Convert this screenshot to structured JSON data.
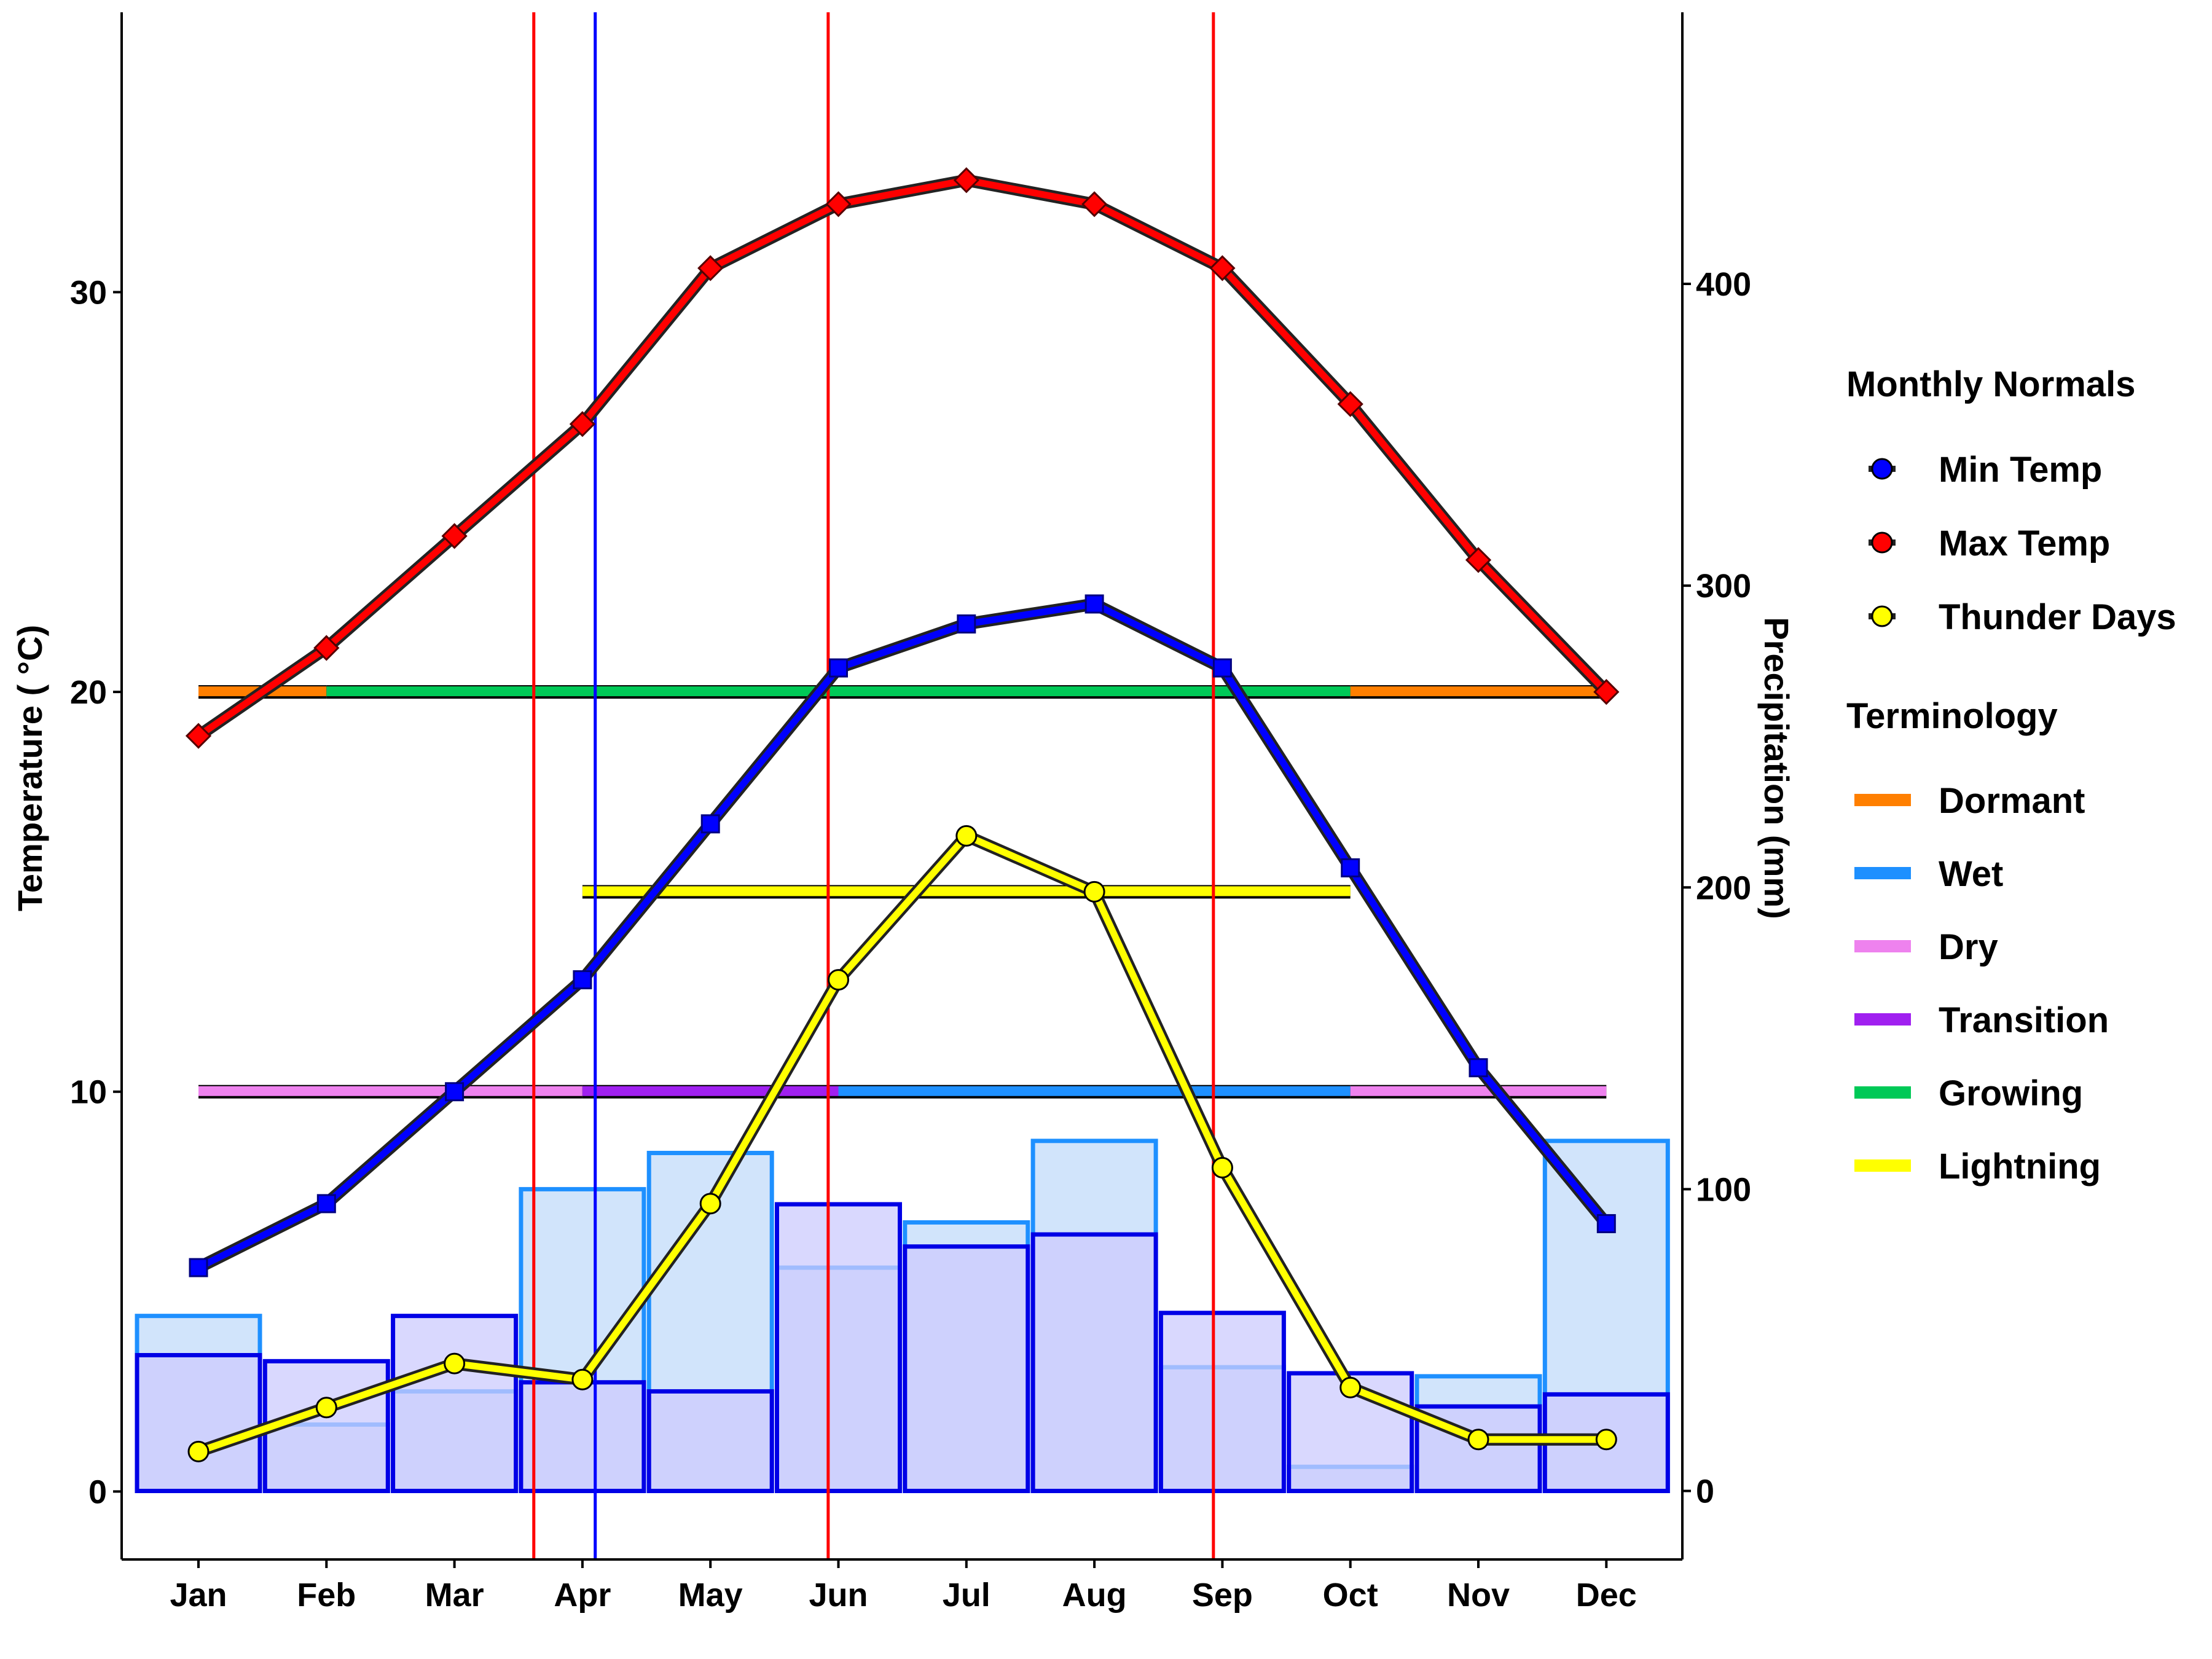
{
  "chart_data": {
    "type": "line",
    "categories": [
      "Jan",
      "Feb",
      "Mar",
      "Apr",
      "May",
      "Jun",
      "Jul",
      "Aug",
      "Sep",
      "Oct",
      "Nov",
      "Dec"
    ],
    "ylabel": "Temperature ( °C)",
    "y2label": "Precipitation (mm)",
    "ylim": [
      -1.7,
      37
    ],
    "y2lim": [
      -22.7,
      490
    ],
    "yticks": [
      0,
      10,
      20,
      30
    ],
    "y2ticks": [
      0,
      100,
      200,
      300,
      400
    ],
    "series": [
      {
        "name": "Min Temp",
        "color": "#0000ff",
        "marker": "square",
        "values": [
          5.6,
          7.2,
          10.0,
          12.8,
          16.7,
          20.6,
          21.7,
          22.2,
          20.6,
          15.6,
          10.6,
          6.7
        ]
      },
      {
        "name": "Max Temp",
        "color": "#ff0000",
        "marker": "diamond",
        "values": [
          18.9,
          21.1,
          23.9,
          26.7,
          30.6,
          32.2,
          32.8,
          32.2,
          30.6,
          27.2,
          23.3,
          20.0
        ]
      },
      {
        "name": "Thunder Days",
        "color": "#ffff00",
        "marker": "circle",
        "values": [
          1.0,
          2.1,
          3.2,
          2.8,
          7.2,
          12.8,
          16.4,
          15.0,
          8.1,
          2.6,
          1.3,
          1.3
        ]
      }
    ],
    "precipitation_bars": [
      {
        "name": "Wet",
        "edge": "#1e90ff",
        "fill": "#cfe3fb",
        "values": [
          58,
          22,
          33,
          100,
          112,
          74,
          89,
          116,
          41,
          8,
          38,
          116
        ]
      },
      {
        "name": "Monthly",
        "edge": "#0000e6",
        "fill": "#cccbfd",
        "values": [
          45,
          43,
          58,
          36,
          33,
          95,
          81,
          85,
          59,
          39,
          28,
          32
        ]
      }
    ],
    "season_bands": [
      {
        "level": 20,
        "segments": [
          {
            "name": "Dormant",
            "from": "Jan",
            "to": "Feb",
            "color": "#ff7f00"
          },
          {
            "name": "Growing",
            "from": "Feb",
            "to": "Oct",
            "color": "#00c957"
          },
          {
            "name": "Dormant",
            "from": "Oct",
            "to": "Dec",
            "color": "#ff7f00"
          }
        ]
      },
      {
        "level": 10,
        "segments": [
          {
            "name": "Dry",
            "from": "Jan",
            "to": "Apr",
            "color": "#ee82ee"
          },
          {
            "name": "Transition",
            "from": "Apr",
            "to": "Jun",
            "color": "#a020f0"
          },
          {
            "name": "Wet",
            "from": "Jun",
            "to": "Oct",
            "color": "#1e90ff"
          },
          {
            "name": "Dry",
            "from": "Oct",
            "to": "Dec",
            "color": "#ee82ee"
          }
        ]
      },
      {
        "level": 15,
        "segments": [
          {
            "name": "Lightning",
            "from": "Apr",
            "to": "Oct",
            "color": "#ffff00"
          }
        ]
      }
    ],
    "vertical_lines": [
      {
        "color": "#ff0000",
        "month": 3.62
      },
      {
        "color": "#0000ff",
        "month": 4.1
      },
      {
        "color": "#ff0000",
        "month": 5.92
      },
      {
        "color": "#ff0000",
        "month": 8.93
      }
    ]
  },
  "legend": {
    "monthly_normals": {
      "title": "Monthly Normals",
      "items": [
        {
          "label": "Min Temp",
          "color": "#0000ff"
        },
        {
          "label": "Max Temp",
          "color": "#ff0000"
        },
        {
          "label": "Thunder Days",
          "color": "#ffff00"
        }
      ]
    },
    "terminology": {
      "title": "Terminology",
      "items": [
        {
          "label": "Dormant",
          "color": "#ff7f00"
        },
        {
          "label": "Wet",
          "color": "#1e90ff"
        },
        {
          "label": "Dry",
          "color": "#ee82ee"
        },
        {
          "label": "Transition",
          "color": "#a020f0"
        },
        {
          "label": "Growing",
          "color": "#00c957"
        },
        {
          "label": "Lightning",
          "color": "#ffff00"
        }
      ]
    }
  }
}
